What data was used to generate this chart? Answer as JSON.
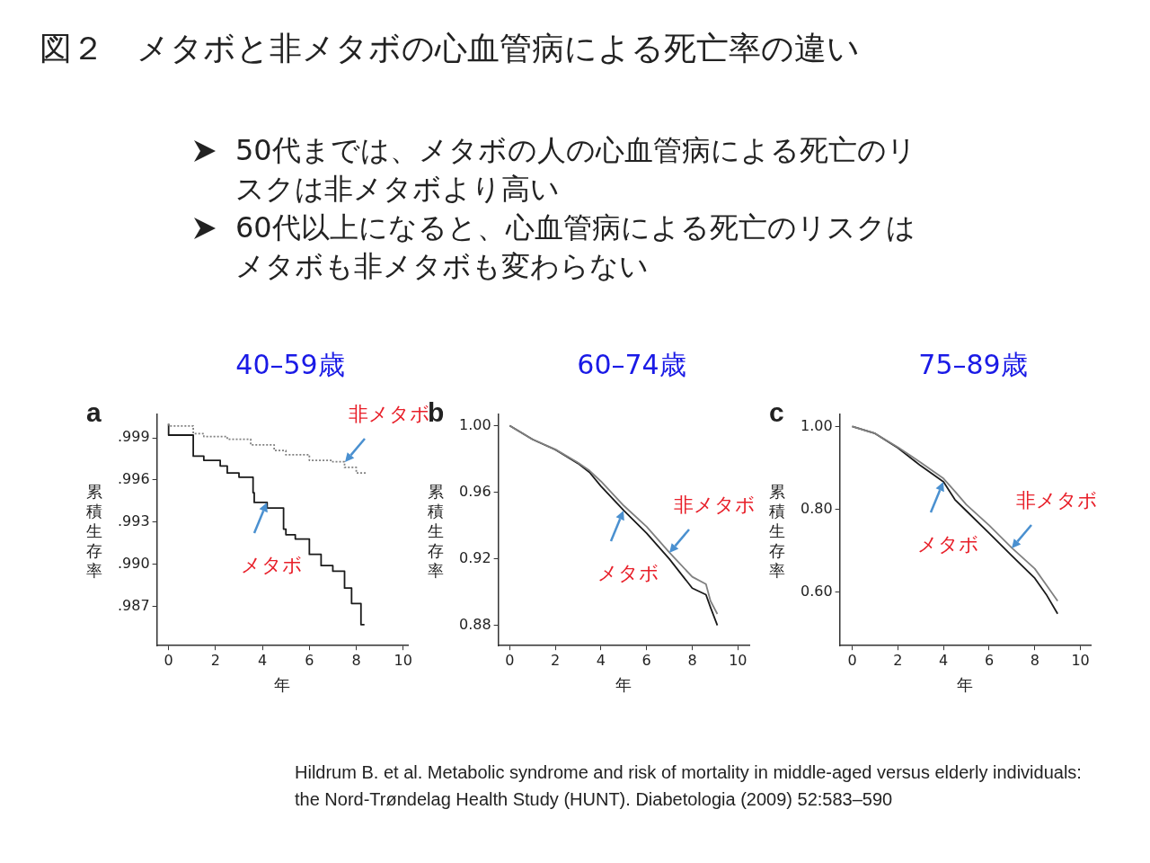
{
  "chart_data": [
    {
      "type": "step",
      "title": "40–59歳",
      "subtitle": "a",
      "xlabel": "年",
      "ylabel": "累積生存率",
      "xlim": [
        -0.5,
        10.2
      ],
      "ylim": [
        0.9842,
        1.0007
      ],
      "xticks": [
        0,
        2,
        4,
        6,
        8,
        10
      ],
      "yticks": [
        {
          "value": 0.999,
          "label": ".999"
        },
        {
          "value": 0.996,
          "label": ".996"
        },
        {
          "value": 0.993,
          "label": ".993"
        },
        {
          "value": 0.99,
          "label": ".990"
        },
        {
          "value": 0.987,
          "label": ".987"
        }
      ],
      "grid": false,
      "legend": false,
      "series": [
        {
          "color": "#808080",
          "line_style": "dotted",
          "x": [
            0,
            1.05,
            1.5,
            2.5,
            3.5,
            4.5,
            5.0,
            6.0,
            7.0,
            7.5,
            8.0,
            8.4
          ],
          "values": [
            1.0,
            0.99985,
            0.9993,
            0.9991,
            0.9989,
            0.9985,
            0.9981,
            0.9978,
            0.9974,
            0.9973,
            0.9969,
            0.9965
          ]
        },
        {
          "color": "#1a1a1a",
          "x": [
            0,
            1.05,
            1.5,
            2.2,
            2.5,
            3.0,
            3.6,
            3.65,
            4.2,
            4.9,
            5.0,
            5.4,
            6.0,
            6.5,
            7.0,
            7.5,
            7.8,
            8.2,
            8.35
          ],
          "values": [
            1.0,
            0.9992,
            0.9977,
            0.9974,
            0.997,
            0.9965,
            0.9962,
            0.9951,
            0.9944,
            0.994,
            0.9925,
            0.9921,
            0.9918,
            0.9907,
            0.9899,
            0.9895,
            0.9883,
            0.9872,
            0.9857
          ]
        }
      ],
      "annotations": [
        "図２　メタボと非メタボの心血管病による死亡率の違い",
        "50代までは、メタボの人の心血管病による死亡のリスクは非メタボより高い",
        "60代以上になると、心血管病による死亡のリスクはメタボも非メタボも変わらない",
        {
          "text": "非メタボ",
          "x": 7.5,
          "y": 0.9973
        },
        {
          "text": "メタボ",
          "x": 4.2,
          "y": 0.9944
        },
        "Hildrum B. et al. Metabolic syndrome and risk of mortality in middle-aged versus elderly individuals: the Nord-Trøndelag Health Study (HUNT). Diabetologia (2009) 52:583–590"
      ]
    },
    {
      "type": "line",
      "title": "60–74歳",
      "subtitle": "b",
      "xlabel": "年",
      "ylabel": "累積生存率",
      "xlim": [
        -0.5,
        10.5
      ],
      "ylim": [
        0.868,
        1.007
      ],
      "xticks": [
        0,
        2,
        4,
        6,
        8,
        10
      ],
      "yticks": [
        {
          "value": 1,
          "label": "1.00"
        },
        0.96,
        0.92,
        0.88
      ],
      "grid": false,
      "legend": false,
      "series": [
        {
          "color": "#808080",
          "x": [
            0,
            1,
            2,
            3,
            3.5,
            4,
            5,
            6,
            7,
            8,
            8.6,
            8.8,
            9.1
          ],
          "values": [
            1.0,
            0.9918,
            0.9858,
            0.9778,
            0.973,
            0.9666,
            0.952,
            0.9394,
            0.9239,
            0.9093,
            0.9049,
            0.8948,
            0.887
          ]
        },
        {
          "color": "#1a1a1a",
          "x": [
            0,
            1,
            2,
            3,
            3.5,
            4,
            5,
            6,
            7,
            8,
            8.6,
            8.8,
            9.1
          ],
          "values": [
            1.0,
            0.9918,
            0.9856,
            0.9773,
            0.972,
            0.9637,
            0.9491,
            0.9355,
            0.92,
            0.9025,
            0.8986,
            0.891,
            0.8802
          ]
        }
      ],
      "annotations": [
        {
          "text": "非メタボ",
          "x": 7,
          "y": 0.9239
        },
        {
          "text": "メタボ",
          "x": 5,
          "y": 0.9491
        }
      ]
    },
    {
      "type": "line",
      "title": "75–89歳",
      "subtitle": "c",
      "xlabel": "年",
      "ylabel": "累積生存率",
      "xlim": [
        -0.55,
        10.45
      ],
      "ylim": [
        0.47,
        1.03
      ],
      "xticks": [
        0,
        2,
        4,
        6,
        8,
        10
      ],
      "yticks": [
        {
          "value": 1,
          "label": "1.00"
        },
        {
          "value": 0.8,
          "label": "0.80"
        },
        {
          "value": 0.6,
          "label": "0.60"
        }
      ],
      "grid": false,
      "legend": false,
      "series": [
        {
          "color": "#808080",
          "x": [
            0,
            1,
            2,
            3,
            4,
            4.5,
            5,
            6,
            7,
            8,
            8.5,
            9
          ],
          "values": [
            1.0,
            0.983,
            0.95,
            0.913,
            0.874,
            0.843,
            0.811,
            0.761,
            0.706,
            0.656,
            0.617,
            0.578
          ]
        },
        {
          "color": "#1a1a1a",
          "x": [
            0,
            1,
            2,
            3,
            4,
            4.5,
            5,
            6,
            7,
            8,
            8.5,
            9
          ],
          "values": [
            1.0,
            0.983,
            0.948,
            0.905,
            0.866,
            0.823,
            0.796,
            0.742,
            0.687,
            0.633,
            0.594,
            0.547
          ]
        }
      ],
      "annotations": [
        {
          "text": "非メタボ",
          "x": 7,
          "y": 0.706
        },
        {
          "text": "メタボ",
          "x": 4,
          "y": 0.866
        }
      ]
    }
  ]
}
